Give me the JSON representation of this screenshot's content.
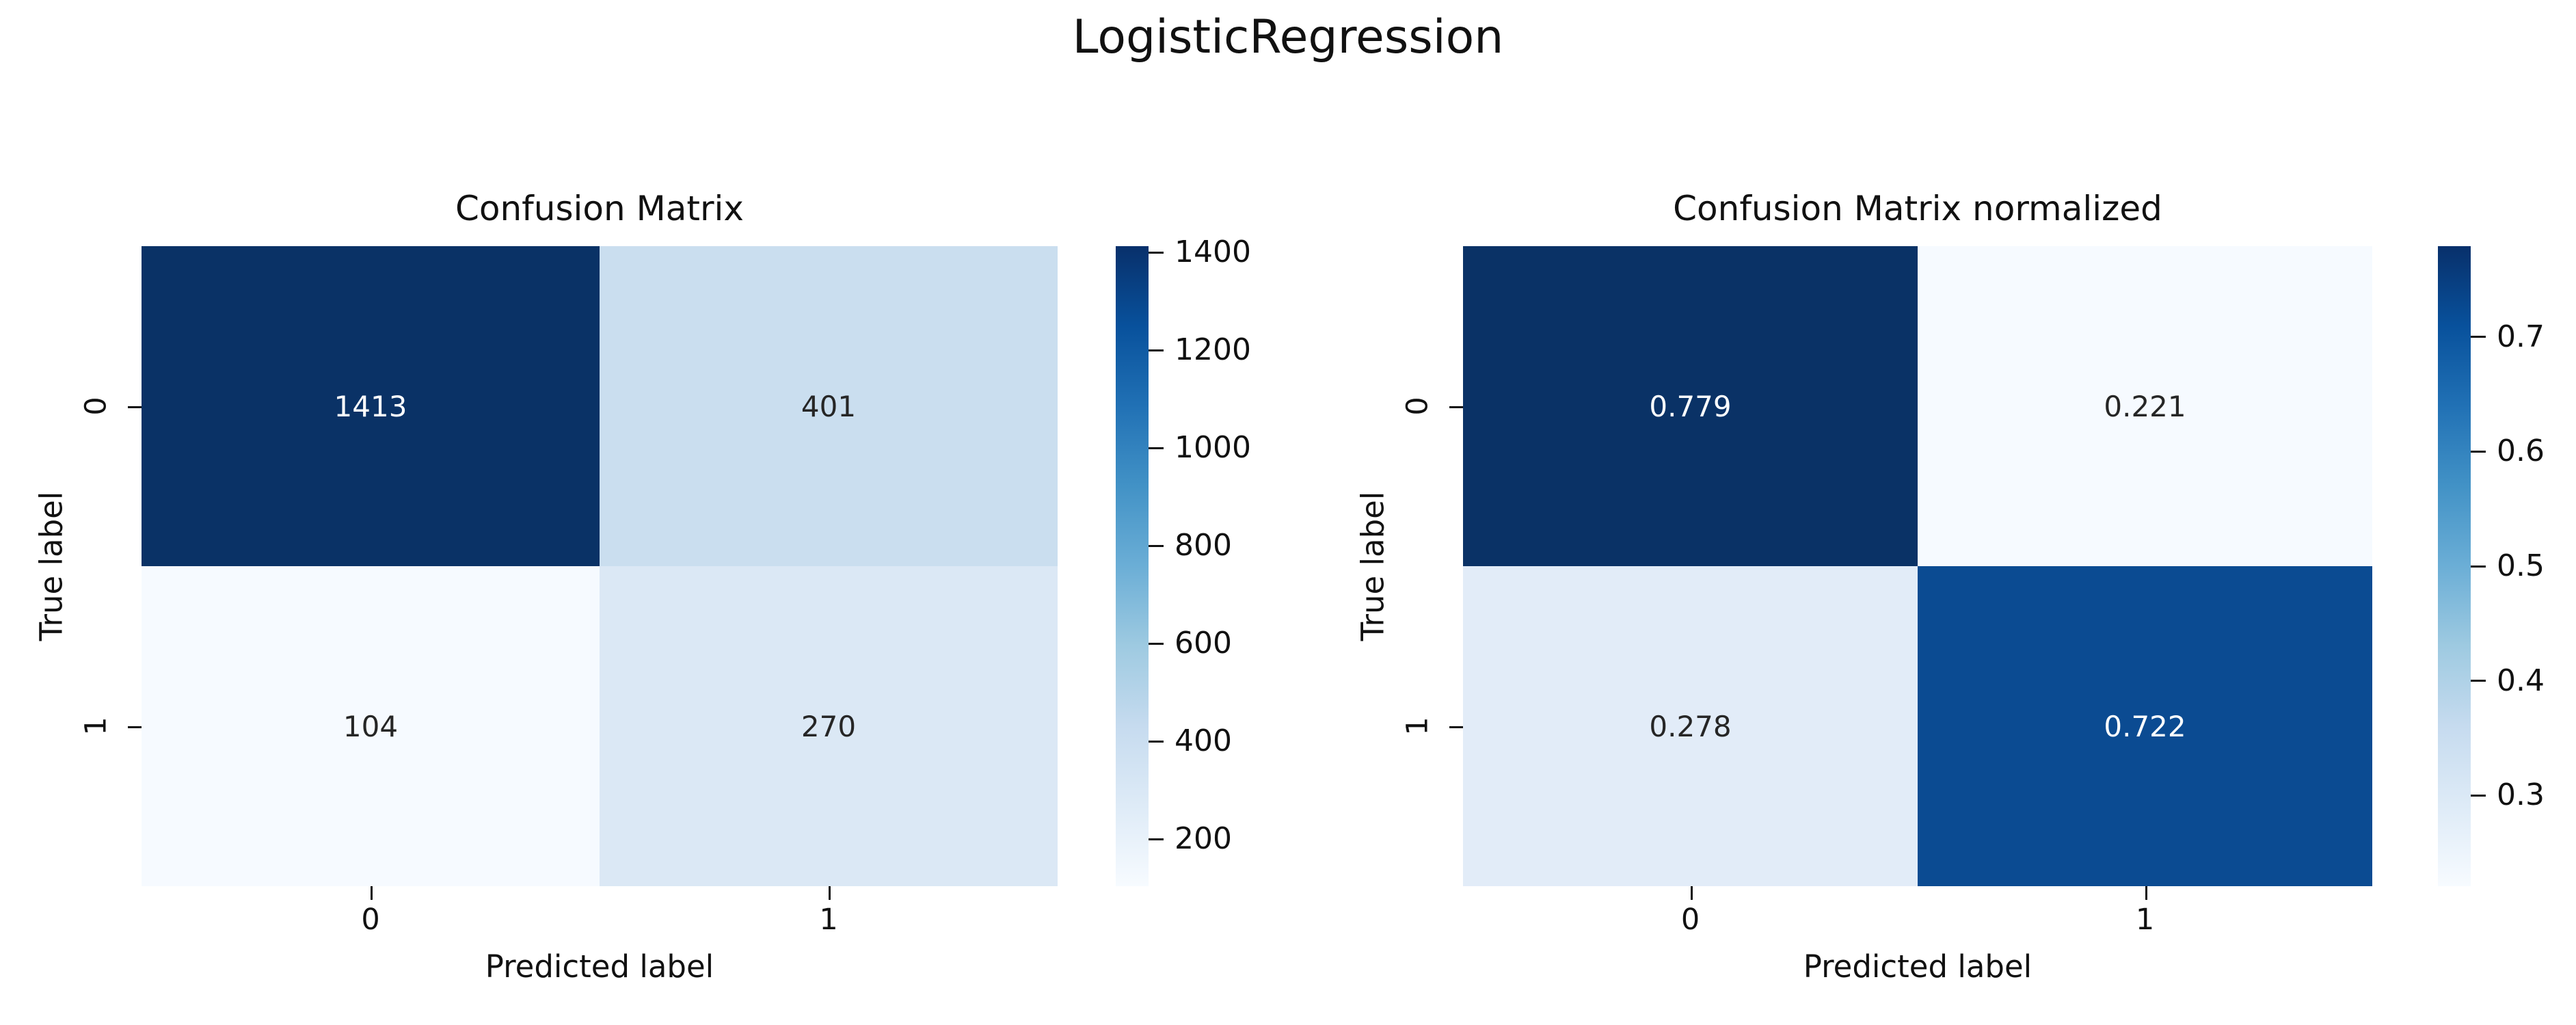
{
  "figure": {
    "suptitle": "LogisticRegression"
  },
  "panels": [
    {
      "title": "Confusion Matrix",
      "xlabel": "Predicted label",
      "ylabel": "True label",
      "xticklabels": [
        "0",
        "1"
      ],
      "yticklabels": [
        "0",
        "1"
      ],
      "cells": [
        {
          "value": "1413",
          "bg": "#0a3266",
          "fg": "#ffffff"
        },
        {
          "value": "401",
          "bg": "#cadeef",
          "fg": "#262626"
        },
        {
          "value": "104",
          "bg": "#f6faff",
          "fg": "#262626"
        },
        {
          "value": "270",
          "bg": "#dbe8f5",
          "fg": "#262626"
        }
      ],
      "colorbar": {
        "vmin": 104,
        "vmax": 1413,
        "ticks": [
          {
            "value": 1400,
            "label": "1400"
          },
          {
            "value": 1200,
            "label": "1200"
          },
          {
            "value": 1000,
            "label": "1000"
          },
          {
            "value": 800,
            "label": "800"
          },
          {
            "value": 600,
            "label": "600"
          },
          {
            "value": 400,
            "label": "400"
          },
          {
            "value": 200,
            "label": "200"
          }
        ]
      }
    },
    {
      "title": "Confusion Matrix normalized",
      "xlabel": "Predicted label",
      "ylabel": "True label",
      "xticklabels": [
        "0",
        "1"
      ],
      "yticklabels": [
        "0",
        "1"
      ],
      "cells": [
        {
          "value": "0.779",
          "bg": "#0a3266",
          "fg": "#ffffff"
        },
        {
          "value": "0.221",
          "bg": "#f6faff",
          "fg": "#262626"
        },
        {
          "value": "0.278",
          "bg": "#e2ecf8",
          "fg": "#262626"
        },
        {
          "value": "0.722",
          "bg": "#0b4b92",
          "fg": "#ffffff"
        }
      ],
      "colorbar": {
        "vmin": 0.221,
        "vmax": 0.779,
        "ticks": [
          {
            "value": 0.7,
            "label": "0.7"
          },
          {
            "value": 0.6,
            "label": "0.6"
          },
          {
            "value": 0.5,
            "label": "0.5"
          },
          {
            "value": 0.4,
            "label": "0.4"
          },
          {
            "value": 0.3,
            "label": "0.3"
          }
        ]
      }
    }
  ],
  "chart_data": [
    {
      "type": "heatmap",
      "title": "Confusion Matrix",
      "suptitle": "LogisticRegression",
      "xlabel": "Predicted label",
      "ylabel": "True label",
      "x": [
        "0",
        "1"
      ],
      "y": [
        "0",
        "1"
      ],
      "values": [
        [
          1413,
          401
        ],
        [
          104,
          270
        ]
      ],
      "colormap": "Blues",
      "vmin": 104,
      "vmax": 1413,
      "colorbar_ticks": [
        200,
        400,
        600,
        800,
        1000,
        1200,
        1400
      ],
      "legend_position": "right-colorbar",
      "grid": false
    },
    {
      "type": "heatmap",
      "title": "Confusion Matrix normalized",
      "suptitle": "LogisticRegression",
      "xlabel": "Predicted label",
      "ylabel": "True label",
      "x": [
        "0",
        "1"
      ],
      "y": [
        "0",
        "1"
      ],
      "values": [
        [
          0.779,
          0.221
        ],
        [
          0.278,
          0.722
        ]
      ],
      "colormap": "Blues",
      "vmin": 0.221,
      "vmax": 0.779,
      "colorbar_ticks": [
        0.3,
        0.4,
        0.5,
        0.6,
        0.7
      ],
      "legend_position": "right-colorbar",
      "grid": false
    }
  ]
}
